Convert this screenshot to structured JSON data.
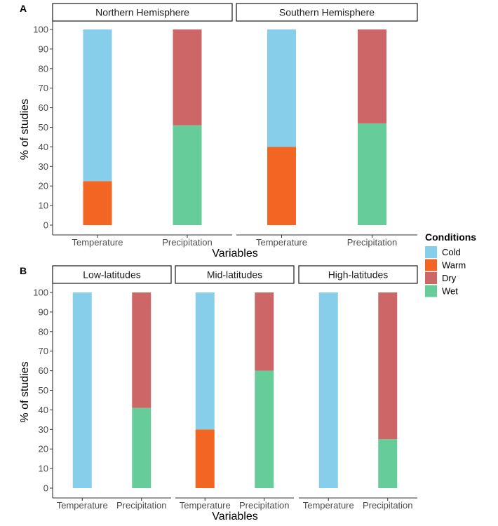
{
  "chart_data": [
    {
      "panel_label": "A",
      "type": "bar",
      "stacked": true,
      "ylabel": "% of studies",
      "xlabel": "Variables",
      "ylim": [
        0,
        100
      ],
      "yticks": [
        "0",
        "10",
        "20",
        "30",
        "40",
        "50",
        "60",
        "70",
        "80",
        "90",
        "100"
      ],
      "facets": [
        {
          "title": "Northern Hemisphere",
          "bars": [
            {
              "category": "Temperature",
              "segments": [
                {
                  "condition": "Warm",
                  "value": 22.5
                },
                {
                  "condition": "Cold",
                  "value": 77.5
                }
              ]
            },
            {
              "category": "Precipitation",
              "segments": [
                {
                  "condition": "Wet",
                  "value": 51
                },
                {
                  "condition": "Dry",
                  "value": 49
                }
              ]
            }
          ]
        },
        {
          "title": "Southern Hemisphere",
          "bars": [
            {
              "category": "Temperature",
              "segments": [
                {
                  "condition": "Warm",
                  "value": 40
                },
                {
                  "condition": "Cold",
                  "value": 60
                }
              ]
            },
            {
              "category": "Precipitation",
              "segments": [
                {
                  "condition": "Wet",
                  "value": 52
                },
                {
                  "condition": "Dry",
                  "value": 48
                }
              ]
            }
          ]
        }
      ]
    },
    {
      "panel_label": "B",
      "type": "bar",
      "stacked": true,
      "ylabel": "% of studies",
      "xlabel": "Variables",
      "ylim": [
        0,
        100
      ],
      "yticks": [
        "0",
        "10",
        "20",
        "30",
        "40",
        "50",
        "60",
        "70",
        "80",
        "90",
        "100"
      ],
      "facets": [
        {
          "title": "Low-latitudes",
          "bars": [
            {
              "category": "Temperature",
              "segments": [
                {
                  "condition": "Warm",
                  "value": 0
                },
                {
                  "condition": "Cold",
                  "value": 100
                }
              ]
            },
            {
              "category": "Precipitation",
              "segments": [
                {
                  "condition": "Wet",
                  "value": 41
                },
                {
                  "condition": "Dry",
                  "value": 59
                }
              ]
            }
          ]
        },
        {
          "title": "Mid-latitudes",
          "bars": [
            {
              "category": "Temperature",
              "segments": [
                {
                  "condition": "Warm",
                  "value": 30
                },
                {
                  "condition": "Cold",
                  "value": 70
                }
              ]
            },
            {
              "category": "Precipitation",
              "segments": [
                {
                  "condition": "Wet",
                  "value": 60
                },
                {
                  "condition": "Dry",
                  "value": 40
                }
              ]
            }
          ]
        },
        {
          "title": "High-latitudes",
          "bars": [
            {
              "category": "Temperature",
              "segments": [
                {
                  "condition": "Warm",
                  "value": 0
                },
                {
                  "condition": "Cold",
                  "value": 100
                }
              ]
            },
            {
              "category": "Precipitation",
              "segments": [
                {
                  "condition": "Wet",
                  "value": 25
                },
                {
                  "condition": "Dry",
                  "value": 75
                }
              ]
            }
          ]
        }
      ]
    }
  ],
  "legend": {
    "title": "Conditions",
    "placement": "right",
    "items": [
      {
        "label": "Cold",
        "color": "#87CEEB"
      },
      {
        "label": "Warm",
        "color": "#F26522"
      },
      {
        "label": "Dry",
        "color": "#CD6666"
      },
      {
        "label": "Wet",
        "color": "#66CD9A"
      }
    ]
  }
}
